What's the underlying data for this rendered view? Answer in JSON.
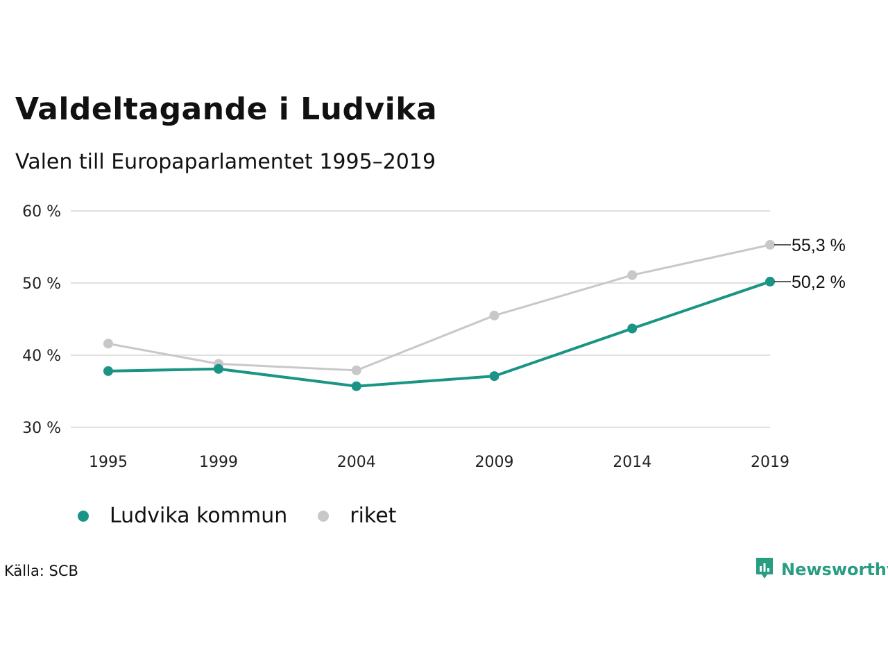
{
  "title": "Valdeltagande i Ludvika",
  "subtitle": "Valen till Europaparlamentet 1995–2019",
  "source": "Källa: SCB",
  "brand": {
    "name": "Newsworthy",
    "icon": "newsworthy-logo-icon",
    "color": "#2a9d80"
  },
  "colors": {
    "ludvika": "#1a9484",
    "riket": "#c8c8c8",
    "grid": "#e0e0e0"
  },
  "chart_data": {
    "type": "line",
    "categories": [
      "1995",
      "1999",
      "2004",
      "2009",
      "2014",
      "2019"
    ],
    "ylim": [
      30,
      60
    ],
    "yticks": [
      30,
      40,
      50,
      60
    ],
    "ytick_labels": [
      "30 %",
      "40 %",
      "50 %",
      "60 %"
    ],
    "grid": true,
    "legend_position": "bottom-left",
    "series": [
      {
        "key": "ludvika",
        "name": "Ludvika kommun",
        "values": [
          37.8,
          38.1,
          35.7,
          37.1,
          43.7,
          50.2
        ],
        "end_label": "50,2 %"
      },
      {
        "key": "riket",
        "name": "riket",
        "values": [
          41.6,
          38.8,
          37.9,
          45.5,
          51.1,
          55.3
        ],
        "end_label": "55,3 %"
      }
    ]
  }
}
